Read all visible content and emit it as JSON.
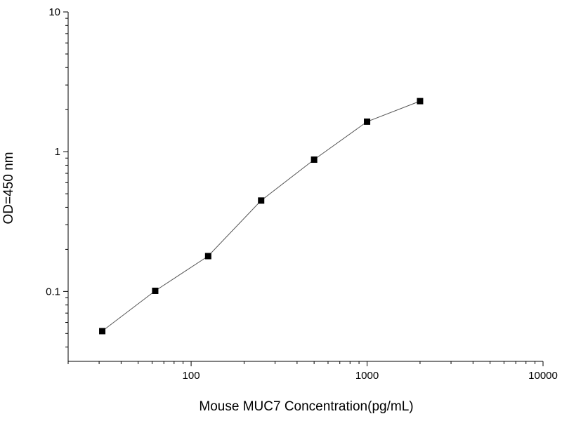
{
  "chart_data": {
    "type": "scatter",
    "title": "",
    "xlabel": "Mouse MUC7 Concentration(pg/mL)",
    "ylabel": "OD=450 nm",
    "xscale": "log",
    "yscale": "log",
    "xlim": [
      20,
      10000
    ],
    "ylim": [
      0.0316,
      10
    ],
    "xticks": [
      100,
      1000,
      10000
    ],
    "xtick_labels": [
      "100",
      "1000",
      "10000"
    ],
    "yticks": [
      0.1,
      1,
      10
    ],
    "ytick_labels": [
      "0.1",
      "1",
      "10"
    ],
    "grid": false,
    "legend": "none",
    "series": [
      {
        "x": [
          31.25,
          62.5,
          125,
          250,
          500,
          1000,
          2000
        ],
        "y": [
          0.052,
          0.101,
          0.179,
          0.447,
          0.877,
          1.64,
          2.3
        ],
        "marker": "square",
        "line": true,
        "color": "#000000"
      }
    ]
  }
}
